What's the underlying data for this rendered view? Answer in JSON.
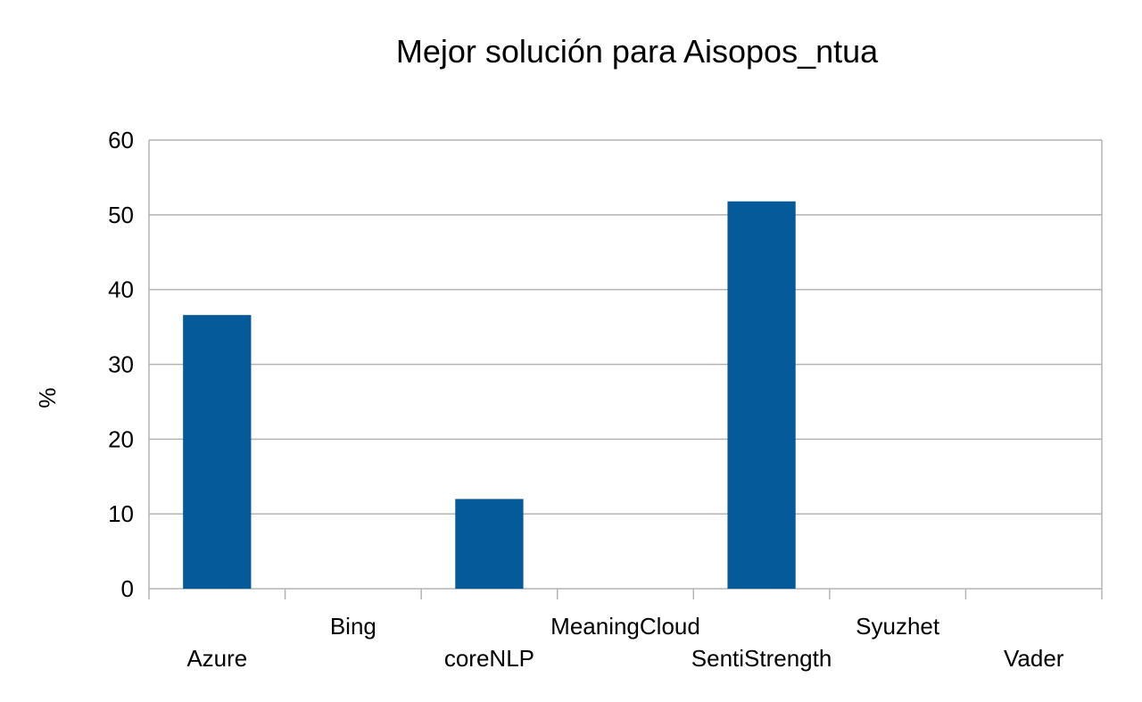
{
  "chart_data": {
    "type": "bar",
    "title": "Mejor solución para Aisopos_ntua",
    "xlabel": "",
    "ylabel": "%",
    "categories": [
      "Azure",
      "Bing",
      "coreNLP",
      "MeaningCloud",
      "SentiStrength",
      "Syuzhet",
      "Vader"
    ],
    "values": [
      36.6,
      0,
      12,
      0,
      51.8,
      0,
      0
    ],
    "ylim": [
      0,
      60
    ],
    "yticks": [
      0,
      10,
      20,
      30,
      40,
      50,
      60
    ],
    "grid": true,
    "legend": "none",
    "bar_color": "#055b99"
  }
}
